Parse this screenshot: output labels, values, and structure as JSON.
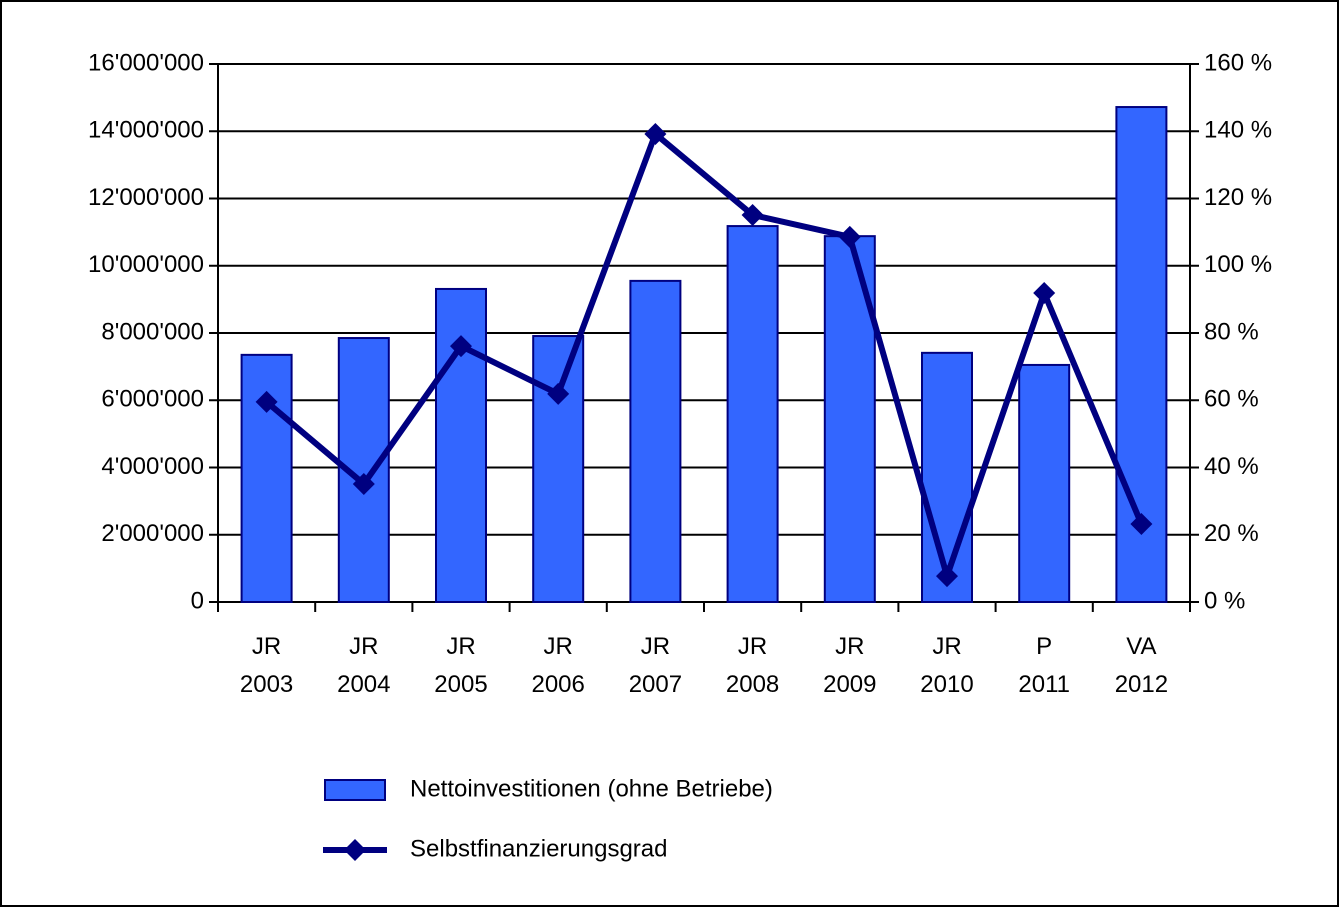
{
  "chart_data": {
    "type": "bar",
    "categories": [
      "JR 2003",
      "JR 2004",
      "JR 2005",
      "JR 2006",
      "JR 2007",
      "JR 2008",
      "JR 2009",
      "JR 2010",
      "P 2011",
      "VA 2012"
    ],
    "series": [
      {
        "name": "Nettoinvestitionen (ohne Betriebe)",
        "type": "bar",
        "color": "#3366ff",
        "values": [
          7350000,
          7850000,
          9310000,
          7910000,
          9550000,
          11180000,
          10880000,
          7410000,
          7050000,
          14720000
        ]
      },
      {
        "name": "Selbstfinanzierungsgrad",
        "type": "line",
        "axis": "y2",
        "color": "#000080",
        "values": [
          59.5,
          35.1,
          76.1,
          61.9,
          139.2,
          115.1,
          108.6,
          7.7,
          91.9,
          23.2
        ]
      }
    ],
    "ylim": [
      0,
      16000000
    ],
    "yticks": [
      0,
      {
        "value": 2000000,
        "label": "2'000'000"
      },
      {
        "value": 4000000,
        "label": "4'000'000"
      },
      {
        "value": 6000000,
        "label": "6'000'000"
      },
      {
        "value": 8000000,
        "label": "8'000'000"
      },
      {
        "value": 10000000,
        "label": "10'000'000"
      },
      {
        "value": 12000000,
        "label": "12'000'000"
      },
      {
        "value": 14000000,
        "label": "14'000'000"
      },
      {
        "value": 16000000,
        "label": "16'000'000"
      }
    ],
    "y2lim": [
      0,
      160
    ],
    "y2ticks": [
      {
        "value": 0,
        "label": "0 %"
      },
      {
        "value": 20,
        "label": "20 %"
      },
      {
        "value": 40,
        "label": "40 %"
      },
      {
        "value": 60,
        "label": "60 %"
      },
      {
        "value": 80,
        "label": "80 %"
      },
      {
        "value": 100,
        "label": "100 %"
      },
      {
        "value": 120,
        "label": "120 %"
      },
      {
        "value": 140,
        "label": "140 %"
      },
      {
        "value": 160,
        "label": "160 %"
      }
    ],
    "grid": true,
    "legend": "bottom"
  }
}
